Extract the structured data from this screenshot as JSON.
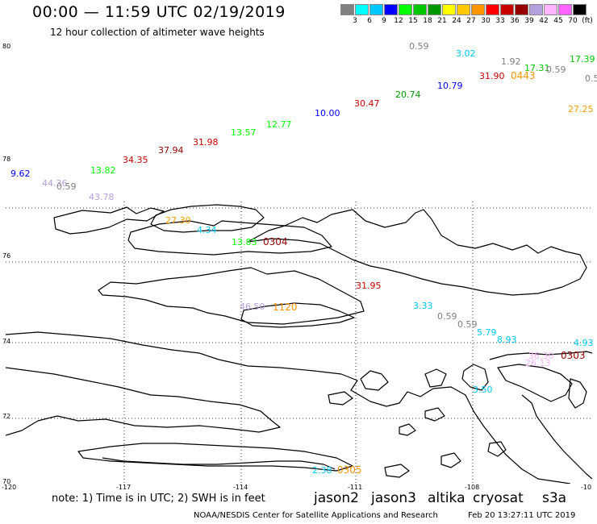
{
  "header": {
    "title": "00:00 — 11:59 UTC 02/19/2019",
    "subtitle": "12 hour collection of altimeter wave heights"
  },
  "colorbar": {
    "labels": [
      "3",
      "6",
      "9",
      "12",
      "15",
      "18",
      "21",
      "24",
      "27",
      "30",
      "33",
      "36",
      "39",
      "42",
      "45",
      "70",
      "(ft)"
    ],
    "colors": [
      "#808080",
      "#00ffff",
      "#00c8ff",
      "#0000ff",
      "#00ff00",
      "#00c800",
      "#009600",
      "#ffff00",
      "#ffc800",
      "#ff9600",
      "#ff0000",
      "#c80000",
      "#960000",
      "#b4a0dc",
      "#ffb4ff",
      "#ff64ff",
      "#000000"
    ]
  },
  "axes": {
    "lat_labels": [
      "80",
      "78",
      "76",
      "74",
      "72",
      "70"
    ],
    "lon_labels": [
      "-120",
      "-117",
      "-114",
      "-111",
      "-108",
      "-10"
    ]
  },
  "wave_heights": [
    {
      "text": "0.59",
      "color": "#808080"
    },
    {
      "text": "3.02",
      "color": "#00c8ff"
    },
    {
      "text": "1.92",
      "color": "#808080"
    },
    {
      "text": "17.31",
      "color": "#00c800"
    },
    {
      "text": "0.59",
      "color": "#808080"
    },
    {
      "text": "17.39",
      "color": "#00c800"
    },
    {
      "text": "0.5",
      "color": "#808080"
    },
    {
      "text": "10.79",
      "color": "#0000ff"
    },
    {
      "text": "31.90",
      "color": "#c80000"
    },
    {
      "text": "20.74",
      "color": "#009600"
    },
    {
      "text": "30.47",
      "color": "#c80000"
    },
    {
      "text": "27.25",
      "color": "#ffa000"
    },
    {
      "text": "10.00",
      "color": "#0000ff"
    },
    {
      "text": "12.77",
      "color": "#00ff00"
    },
    {
      "text": "13.57",
      "color": "#00ff00"
    },
    {
      "text": "31.98",
      "color": "#c80000"
    },
    {
      "text": "37.94",
      "color": "#960000"
    },
    {
      "text": "34.35",
      "color": "#c80000"
    },
    {
      "text": "13.82",
      "color": "#00ff00"
    },
    {
      "text": "9.62",
      "color": "#0000ff"
    },
    {
      "text": "44.36",
      "color": "#b4a0dc"
    },
    {
      "text": "0.59",
      "color": "#808080"
    },
    {
      "text": "43.78",
      "color": "#b4a0dc"
    },
    {
      "text": "27.30",
      "color": "#ffa000"
    },
    {
      "text": "4.34",
      "color": "#00c8ff"
    },
    {
      "text": "13.83",
      "color": "#00ff00"
    },
    {
      "text": "31.95",
      "color": "#c80000"
    },
    {
      "text": "46.50",
      "color": "#b4a0dc"
    },
    {
      "text": "3.33",
      "color": "#00c8ff"
    },
    {
      "text": "0.59",
      "color": "#808080"
    },
    {
      "text": "0.59",
      "color": "#808080"
    },
    {
      "text": "5.79",
      "color": "#00c8ff"
    },
    {
      "text": "8.93",
      "color": "#00c8ff"
    },
    {
      "text": "4.93",
      "color": "#00c8ff"
    },
    {
      "text": "36.30",
      "color": "#ffb4ff"
    },
    {
      "text": "26.13",
      "color": "#ffb4ff"
    },
    {
      "text": "3.50",
      "color": "#00c8ff"
    },
    {
      "text": "2.38",
      "color": "#00c8ff"
    }
  ],
  "pass_times": [
    {
      "text": "0443",
      "color": "#ff9600"
    },
    {
      "text": "0304",
      "color": "#960000"
    },
    {
      "text": "1120",
      "color": "#ff9600"
    },
    {
      "text": "0303",
      "color": "#960000"
    },
    {
      "text": "0305",
      "color": "#ff9600"
    }
  ],
  "footer": {
    "note": "note: 1) Time is in UTC; 2) SWH is in feet",
    "legend": [
      {
        "text": "jason2",
        "color": "#0000ff"
      },
      {
        "text": "jason3",
        "color": "#009600"
      },
      {
        "text": "altika",
        "color": "#ff9600"
      },
      {
        "text": "cryosat",
        "color": "#c80000"
      },
      {
        "text": "s3a",
        "color": "#c80000"
      }
    ],
    "credit": "NOAA/NESDIS Center for Satellite Applications and Research",
    "timestamp": "Feb 20 13:27:11 UTC 2019"
  }
}
